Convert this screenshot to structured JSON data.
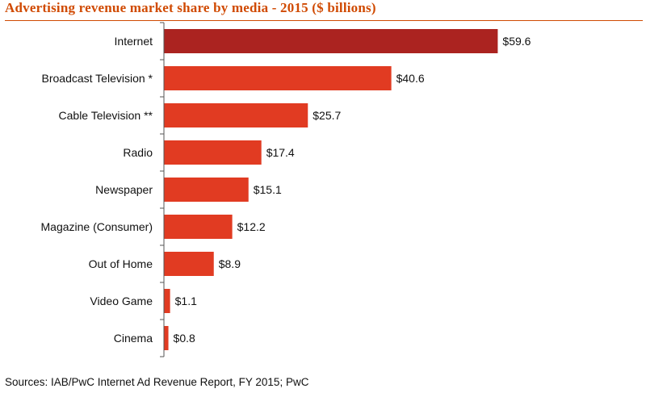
{
  "chart_data": {
    "type": "bar",
    "orientation": "horizontal",
    "title": "Advertising revenue market share by media - 2015 ($ billions)",
    "categories": [
      "Internet",
      "Broadcast Television *",
      "Cable Television **",
      "Radio",
      "Newspaper",
      "Magazine (Consumer)",
      "Out of Home",
      "Video Game",
      "Cinema"
    ],
    "values": [
      59.6,
      40.6,
      25.7,
      17.4,
      15.1,
      12.2,
      8.9,
      1.1,
      0.8
    ],
    "value_labels": [
      "$59.6",
      "$40.6",
      "$25.7",
      "$17.4",
      "$15.1",
      "$12.2",
      "$8.9",
      "$1.1",
      "$0.8"
    ],
    "highlight_index": 0,
    "colors": {
      "highlight": "#ab2320",
      "bar": "#e13b22",
      "axis": "#555555",
      "title": "#d04a02"
    },
    "xlim": [
      0,
      63
    ],
    "xlabel": "",
    "ylabel": "",
    "grid": false
  },
  "footer": {
    "source": "Sources: IAB/PwC Internet Ad Revenue Report, FY 2015; PwC"
  }
}
